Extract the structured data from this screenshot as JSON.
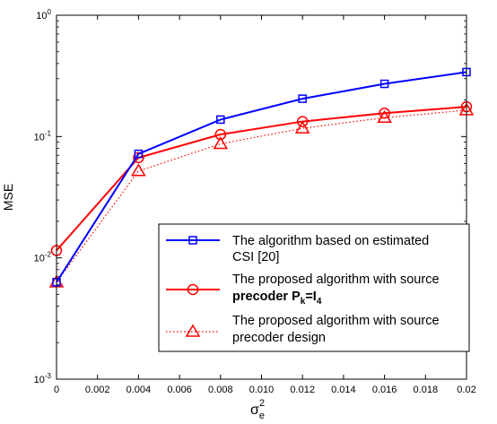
{
  "chart_data": {
    "type": "line",
    "xlabel": "σ",
    "xlabel_sub": "e",
    "xlabel_sup": "2",
    "ylabel": "MSE",
    "yscale": "log",
    "xlim": [
      0,
      0.02
    ],
    "ylim": [
      0.001,
      1
    ],
    "grid": false,
    "legend_position": "lower-right",
    "x": [
      0,
      0.004,
      0.008,
      0.012,
      0.016,
      0.02
    ],
    "x_tick_labels": [
      "0",
      "0.002",
      "0.004",
      "0.006",
      "0.008",
      "0.010",
      "0.012",
      "0.014",
      "0.016",
      "0.018",
      "0.02"
    ],
    "y_ticks": [
      {
        "base": "10",
        "exp": "-3"
      },
      {
        "base": "10",
        "exp": "-2"
      },
      {
        "base": "10",
        "exp": "-1"
      },
      {
        "base": "10",
        "exp": "0"
      }
    ],
    "series": [
      {
        "name_lines": [
          "The algorithm based on estimated",
          "CSI [20]"
        ],
        "values": [
          0.0063,
          0.072,
          0.138,
          0.205,
          0.272,
          0.34
        ],
        "color": "#0000ff",
        "line_style": "solid",
        "marker": "square"
      },
      {
        "name_lines": [
          "The proposed algorithm with source",
          "precoder P",
          "k",
          "=I",
          "4"
        ],
        "values": [
          0.0115,
          0.067,
          0.104,
          0.133,
          0.156,
          0.176
        ],
        "color": "#ff0000",
        "line_style": "solid",
        "marker": "circle"
      },
      {
        "name_lines": [
          "The proposed algorithm with source",
          "precoder design"
        ],
        "values": [
          0.0063,
          0.052,
          0.087,
          0.117,
          0.143,
          0.165
        ],
        "color": "#ff0000",
        "line_style": "dotted",
        "marker": "triangle"
      }
    ]
  }
}
